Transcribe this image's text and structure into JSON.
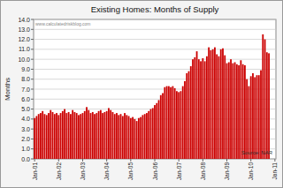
{
  "chart_data": {
    "type": "bar",
    "title": "Existing Homes: Months of Supply",
    "y_label": "Months",
    "source": "Source: NAR",
    "watermark": "www.calculatedriskblog.com",
    "categories": [
      "Jan-01",
      null,
      null,
      null,
      null,
      null,
      null,
      null,
      null,
      null,
      null,
      null,
      "Jan-02",
      null,
      null,
      null,
      null,
      null,
      null,
      null,
      null,
      null,
      null,
      null,
      "Jan-03",
      null,
      null,
      null,
      null,
      null,
      null,
      null,
      null,
      null,
      null,
      null,
      "Jan-04",
      null,
      null,
      null,
      null,
      null,
      null,
      null,
      null,
      null,
      null,
      null,
      "Jan-05",
      null,
      null,
      null,
      null,
      null,
      null,
      null,
      null,
      null,
      null,
      null,
      "Jan-06",
      null,
      null,
      null,
      null,
      null,
      null,
      null,
      null,
      null,
      null,
      null,
      "Jan-07",
      null,
      null,
      null,
      null,
      null,
      null,
      null,
      null,
      null,
      null,
      null,
      "Jan-08",
      null,
      null,
      null,
      null,
      null,
      null,
      null,
      null,
      null,
      null,
      null,
      "Jan-09",
      null,
      null,
      null,
      null,
      null,
      null,
      null,
      null,
      null,
      null,
      null,
      "Jan-10",
      null,
      null,
      null,
      null,
      null,
      null,
      null,
      null,
      null,
      null,
      null,
      "Jan-11"
    ],
    "values": [
      4.1,
      4.3,
      4.5,
      4.6,
      4.8,
      4.5,
      4.4,
      4.6,
      4.9,
      4.7,
      4.5,
      4.6,
      4.4,
      4.6,
      4.8,
      5.0,
      4.6,
      4.7,
      4.5,
      4.9,
      4.7,
      4.6,
      4.4,
      4.5,
      4.6,
      4.8,
      5.2,
      4.9,
      4.6,
      4.7,
      4.5,
      4.6,
      4.8,
      4.9,
      4.6,
      4.7,
      4.8,
      5.1,
      4.9,
      4.7,
      4.5,
      4.6,
      4.4,
      4.5,
      4.3,
      4.6,
      4.4,
      4.3,
      4.1,
      4.2,
      4.0,
      3.8,
      4.1,
      4.2,
      4.4,
      4.5,
      4.6,
      4.8,
      5.0,
      5.1,
      5.4,
      5.6,
      5.9,
      6.4,
      6.6,
      7.2,
      7.3,
      7.3,
      7.2,
      7.3,
      7.1,
      6.8,
      6.7,
      6.8,
      7.3,
      7.8,
      8.6,
      8.8,
      9.3,
      10.0,
      10.2,
      10.8,
      10.0,
      9.8,
      10.1,
      9.8,
      10.3,
      11.2,
      10.9,
      11.0,
      11.2,
      10.5,
      10.3,
      11.0,
      11.1,
      10.4,
      9.6,
      9.7,
      10.0,
      9.6,
      9.7,
      9.5,
      9.4,
      9.9,
      9.5,
      9.4,
      8.0,
      7.3,
      8.3,
      8.6,
      8.2,
      8.4,
      8.4,
      8.9,
      12.5,
      12.0,
      10.7,
      10.6,
      null,
      null,
      null
    ],
    "color": "#cc0000",
    "ylim": [
      0,
      14
    ],
    "yticks": [
      {
        "value": 0,
        "label": "0.0"
      },
      {
        "value": 1,
        "label": "1.0"
      },
      {
        "value": 2,
        "label": "2.0"
      },
      {
        "value": 3,
        "label": "3.0"
      },
      {
        "value": 4,
        "label": "4.0"
      },
      {
        "value": 5,
        "label": "5.0"
      },
      {
        "value": 6,
        "label": "6.0"
      },
      {
        "value": 7,
        "label": "7.0"
      },
      {
        "value": 8,
        "label": "8.0"
      },
      {
        "value": 9,
        "label": "9.0"
      },
      {
        "value": 10,
        "label": "10.0"
      },
      {
        "value": 11,
        "label": "11.0"
      },
      {
        "value": 12,
        "label": "12.0"
      },
      {
        "value": 13,
        "label": "13.0"
      },
      {
        "value": 14,
        "label": "14.0"
      }
    ],
    "grid": true
  }
}
